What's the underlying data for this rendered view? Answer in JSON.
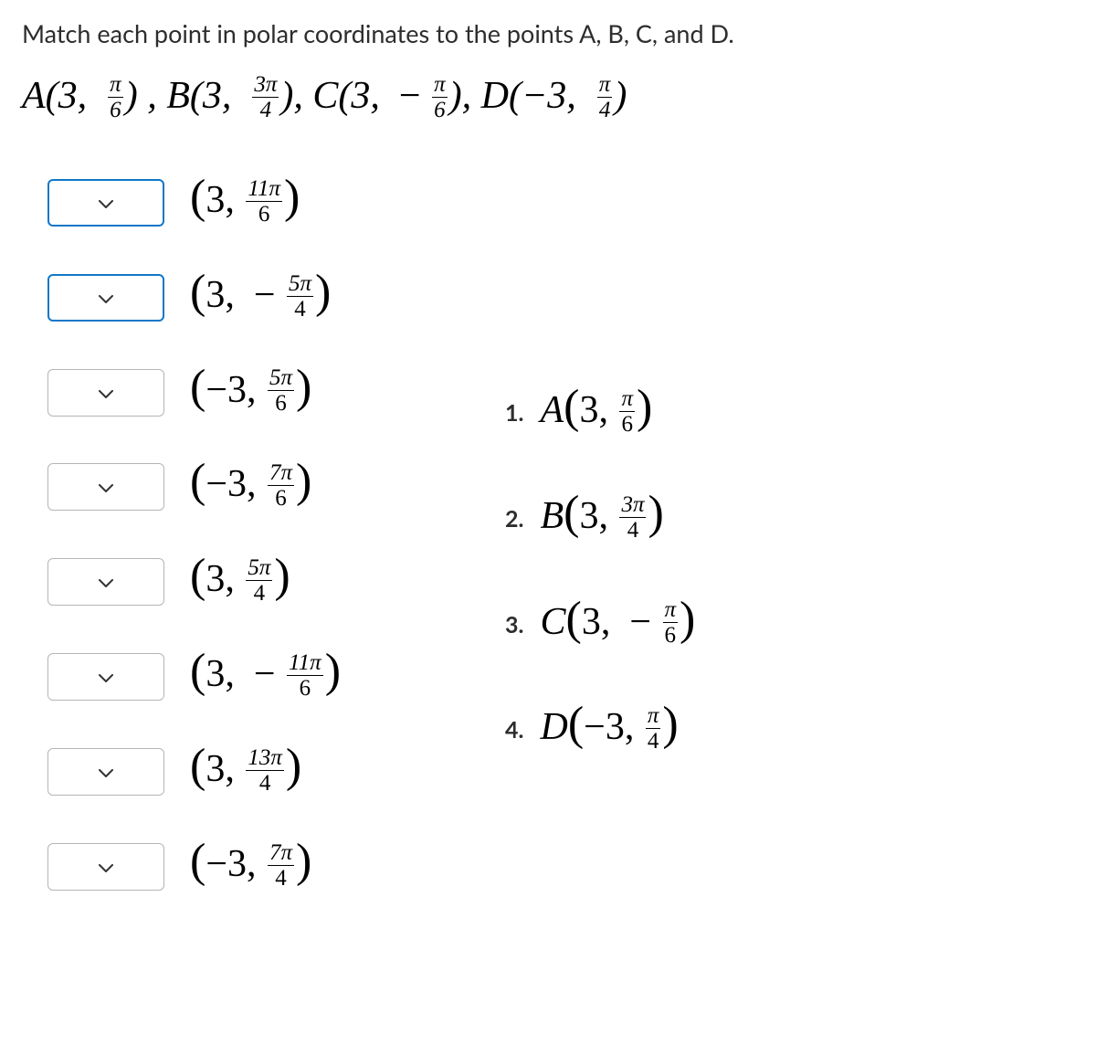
{
  "instruction": "Match each point in polar coordinates to the points A, B, C, and D.",
  "defs": {
    "A": {
      "label": "A",
      "r": "3",
      "sign": "",
      "num": "π",
      "den": "6"
    },
    "B": {
      "label": "B",
      "r": "3",
      "sign": "",
      "num": "3π",
      "den": "4"
    },
    "C": {
      "label": "C",
      "r": "3",
      "sign": " − ",
      "num": "π",
      "den": "6"
    },
    "D": {
      "label": "D",
      "r": "−3",
      "sign": "",
      "num": "π",
      "den": "4"
    }
  },
  "options": [
    {
      "r": "3",
      "sign": "",
      "num": "11π",
      "den": "6",
      "active": true
    },
    {
      "r": "3",
      "sign": " − ",
      "num": "5π",
      "den": "4",
      "active": true
    },
    {
      "r": "−3",
      "sign": "",
      "num": "5π",
      "den": "6",
      "active": false
    },
    {
      "r": "−3",
      "sign": "",
      "num": "7π",
      "den": "6",
      "active": false
    },
    {
      "r": "3",
      "sign": "",
      "num": "5π",
      "den": "4",
      "active": false
    },
    {
      "r": "3",
      "sign": " − ",
      "num": "11π",
      "den": "6",
      "active": false
    },
    {
      "r": "3",
      "sign": "",
      "num": "13π",
      "den": "4",
      "active": false
    },
    {
      "r": "−3",
      "sign": "",
      "num": "7π",
      "den": "4",
      "active": false
    }
  ],
  "answers": [
    {
      "n": "1.",
      "label": "A",
      "r": "3",
      "sign": "",
      "num": "π",
      "den": "6"
    },
    {
      "n": "2.",
      "label": "B",
      "r": "3",
      "sign": "",
      "num": "3π",
      "den": "4"
    },
    {
      "n": "3.",
      "label": "C",
      "r": "3",
      "sign": "  − ",
      "num": "π",
      "den": "6"
    },
    {
      "n": "4.",
      "label": "D",
      "r": "−3",
      "sign": "",
      "num": "π",
      "den": "4"
    }
  ],
  "colors": {
    "active_border": "#1077c8",
    "inactive_border": "#b5b5b5",
    "text": "#2d2d2d",
    "bg": "#ffffff"
  }
}
